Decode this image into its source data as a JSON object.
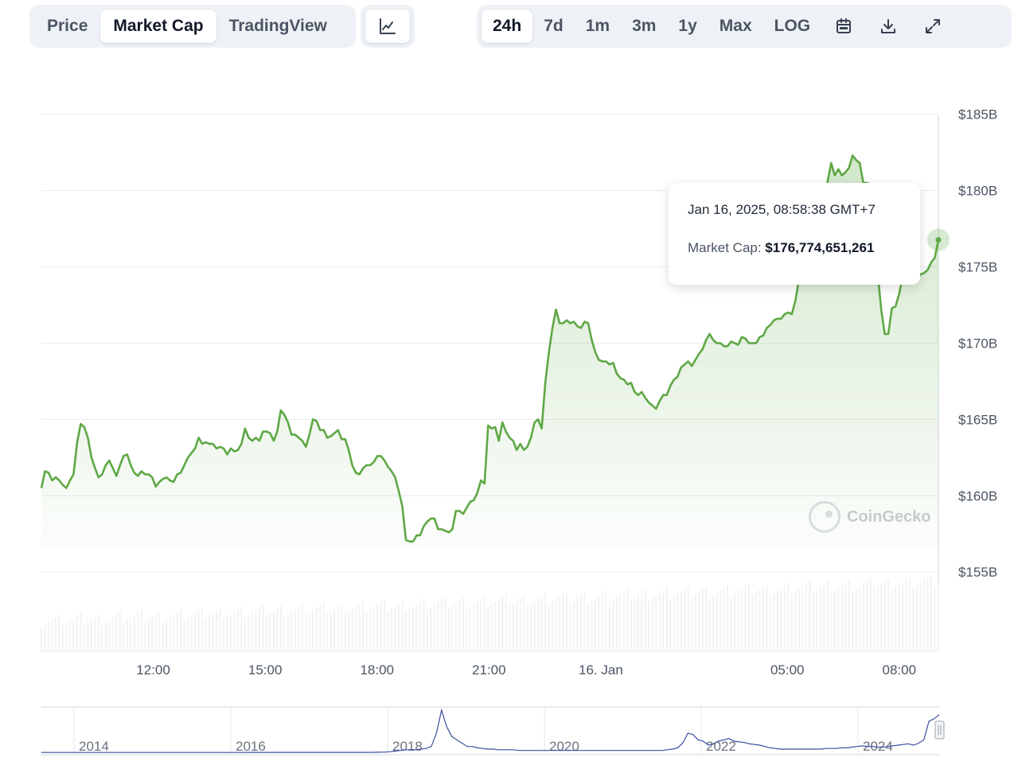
{
  "toolbar": {
    "view_tabs": [
      {
        "label": "Price",
        "active": false
      },
      {
        "label": "Market Cap",
        "active": true
      },
      {
        "label": "TradingView",
        "active": false
      }
    ],
    "chart_type_icon": "line-chart-icon",
    "ranges": [
      {
        "label": "24h",
        "active": true
      },
      {
        "label": "7d",
        "active": false
      },
      {
        "label": "1m",
        "active": false
      },
      {
        "label": "3m",
        "active": false
      },
      {
        "label": "1y",
        "active": false
      },
      {
        "label": "Max",
        "active": false
      },
      {
        "label": "LOG",
        "active": false
      }
    ],
    "icons": [
      "calendar-icon",
      "download-icon",
      "expand-icon"
    ]
  },
  "tooltip": {
    "date": "Jan 16, 2025, 08:58:38 GMT+7",
    "label": "Market Cap:",
    "value": "$176,774,651,261"
  },
  "watermark": "CoinGecko",
  "colors": {
    "line": "#5ea845",
    "area": "#5ea845",
    "navigator_line": "#3b4fa0",
    "grid": "#e8ecf0"
  },
  "chart_data": {
    "type": "area",
    "ylim": [
      152,
      185
    ],
    "yticks": [
      {
        "value": 185,
        "label": "$185B"
      },
      {
        "value": 180,
        "label": "$180B"
      },
      {
        "value": 175,
        "label": "$175B"
      },
      {
        "value": 170,
        "label": "$170B"
      },
      {
        "value": 165,
        "label": "$165B"
      },
      {
        "value": 160,
        "label": "$160B"
      },
      {
        "value": 155,
        "label": "$155B"
      }
    ],
    "x_range_hours": [
      9,
      33.05
    ],
    "xticks": [
      {
        "t": 12,
        "label": "12:00"
      },
      {
        "t": 15,
        "label": "15:00"
      },
      {
        "t": 18,
        "label": "18:00"
      },
      {
        "t": 21,
        "label": "21:00"
      },
      {
        "t": 24,
        "label": "16. Jan"
      },
      {
        "t": 29,
        "label": "05:00"
      },
      {
        "t": 32,
        "label": "08:00"
      }
    ],
    "series": [
      {
        "points": [
          [
            9.0,
            160.5
          ],
          [
            9.1,
            161.6
          ],
          [
            9.2,
            161.5
          ],
          [
            9.3,
            161.0
          ],
          [
            9.4,
            161.2
          ],
          [
            9.5,
            161.0
          ],
          [
            9.6,
            160.7
          ],
          [
            9.7,
            160.5
          ],
          [
            9.8,
            161.0
          ],
          [
            9.9,
            161.4
          ],
          [
            10.0,
            163.5
          ],
          [
            10.1,
            164.7
          ],
          [
            10.2,
            164.5
          ],
          [
            10.3,
            163.8
          ],
          [
            10.4,
            162.5
          ],
          [
            10.5,
            161.8
          ],
          [
            10.6,
            161.2
          ],
          [
            10.7,
            161.4
          ],
          [
            10.8,
            162.0
          ],
          [
            10.9,
            162.3
          ],
          [
            11.0,
            161.8
          ],
          [
            11.1,
            161.3
          ],
          [
            11.2,
            162.0
          ],
          [
            11.3,
            162.6
          ],
          [
            11.4,
            162.7
          ],
          [
            11.5,
            162.0
          ],
          [
            11.6,
            161.5
          ],
          [
            11.7,
            161.3
          ],
          [
            11.8,
            161.6
          ],
          [
            11.9,
            161.4
          ],
          [
            12.0,
            161.4
          ],
          [
            12.1,
            161.2
          ],
          [
            12.2,
            160.6
          ],
          [
            12.3,
            160.9
          ],
          [
            12.4,
            161.1
          ],
          [
            12.5,
            161.2
          ],
          [
            12.6,
            161.0
          ],
          [
            12.7,
            160.9
          ],
          [
            12.8,
            161.4
          ],
          [
            12.9,
            161.5
          ],
          [
            13.0,
            162.0
          ],
          [
            13.1,
            162.5
          ],
          [
            13.2,
            162.8
          ],
          [
            13.3,
            163.1
          ],
          [
            13.4,
            163.8
          ],
          [
            13.5,
            163.4
          ],
          [
            13.6,
            163.5
          ],
          [
            13.7,
            163.4
          ],
          [
            13.8,
            163.4
          ],
          [
            13.9,
            163.1
          ],
          [
            14.0,
            163.2
          ],
          [
            14.1,
            163.1
          ],
          [
            14.2,
            162.7
          ],
          [
            14.3,
            163.1
          ],
          [
            14.4,
            162.9
          ],
          [
            14.5,
            163.0
          ],
          [
            14.6,
            163.4
          ],
          [
            14.7,
            164.4
          ],
          [
            14.8,
            163.8
          ],
          [
            14.9,
            163.6
          ],
          [
            15.0,
            163.8
          ],
          [
            15.1,
            163.6
          ],
          [
            15.2,
            164.2
          ],
          [
            15.3,
            164.2
          ],
          [
            15.4,
            164.1
          ],
          [
            15.5,
            163.6
          ],
          [
            15.6,
            164.2
          ],
          [
            15.7,
            165.6
          ],
          [
            15.8,
            165.3
          ],
          [
            15.9,
            164.8
          ],
          [
            16.0,
            164.0
          ],
          [
            16.1,
            164.0
          ],
          [
            16.2,
            163.8
          ],
          [
            16.3,
            163.6
          ],
          [
            16.4,
            163.2
          ],
          [
            16.5,
            164.0
          ],
          [
            16.6,
            165.0
          ],
          [
            16.7,
            164.9
          ],
          [
            16.8,
            164.3
          ],
          [
            16.9,
            164.3
          ],
          [
            17.0,
            163.8
          ],
          [
            17.1,
            163.9
          ],
          [
            17.2,
            164.1
          ],
          [
            17.3,
            164.3
          ],
          [
            17.4,
            163.7
          ],
          [
            17.5,
            163.7
          ],
          [
            17.6,
            163.0
          ],
          [
            17.7,
            162.0
          ],
          [
            17.8,
            161.5
          ],
          [
            17.9,
            161.4
          ],
          [
            18.0,
            161.8
          ],
          [
            18.1,
            162.0
          ],
          [
            18.2,
            162.0
          ],
          [
            18.3,
            162.2
          ],
          [
            18.4,
            162.6
          ],
          [
            18.5,
            162.6
          ],
          [
            18.6,
            162.3
          ],
          [
            18.7,
            161.9
          ],
          [
            18.8,
            161.6
          ],
          [
            18.9,
            161.2
          ],
          [
            19.0,
            160.3
          ],
          [
            19.1,
            159.3
          ],
          [
            19.2,
            157.1
          ],
          [
            19.3,
            157.0
          ],
          [
            19.4,
            157.0
          ],
          [
            19.5,
            157.4
          ],
          [
            19.6,
            157.4
          ],
          [
            19.7,
            158.0
          ],
          [
            19.8,
            158.3
          ],
          [
            19.9,
            158.5
          ],
          [
            20.0,
            158.5
          ],
          [
            20.1,
            157.8
          ],
          [
            20.2,
            157.8
          ],
          [
            20.3,
            157.7
          ],
          [
            20.4,
            157.6
          ],
          [
            20.5,
            157.8
          ],
          [
            20.6,
            159.0
          ],
          [
            20.7,
            159.0
          ],
          [
            20.8,
            158.8
          ],
          [
            20.9,
            159.2
          ],
          [
            21.0,
            159.6
          ],
          [
            21.1,
            159.7
          ],
          [
            21.2,
            160.2
          ],
          [
            21.3,
            161.0
          ],
          [
            21.4,
            160.8
          ],
          [
            21.5,
            164.6
          ],
          [
            21.6,
            164.4
          ],
          [
            21.7,
            164.5
          ],
          [
            21.8,
            163.6
          ],
          [
            21.9,
            164.8
          ],
          [
            22.0,
            164.2
          ],
          [
            22.1,
            163.8
          ],
          [
            22.2,
            163.6
          ],
          [
            22.3,
            163.0
          ],
          [
            22.4,
            163.4
          ],
          [
            22.5,
            163.0
          ],
          [
            22.6,
            163.2
          ],
          [
            22.7,
            163.8
          ],
          [
            22.8,
            164.8
          ],
          [
            22.9,
            165.0
          ],
          [
            23.0,
            164.4
          ],
          [
            23.1,
            167.4
          ],
          [
            23.2,
            169.4
          ],
          [
            23.3,
            171.0
          ],
          [
            23.4,
            172.2
          ],
          [
            23.5,
            171.3
          ],
          [
            23.6,
            171.3
          ],
          [
            23.7,
            171.5
          ],
          [
            23.8,
            171.3
          ],
          [
            23.9,
            171.4
          ],
          [
            24.0,
            171.1
          ],
          [
            24.1,
            171.0
          ],
          [
            24.2,
            171.4
          ],
          [
            24.3,
            171.3
          ],
          [
            24.4,
            170.2
          ],
          [
            24.5,
            169.4
          ],
          [
            24.6,
            168.9
          ],
          [
            24.7,
            168.8
          ],
          [
            24.8,
            168.8
          ],
          [
            24.9,
            168.6
          ],
          [
            25.0,
            168.7
          ],
          [
            25.1,
            168.0
          ],
          [
            25.2,
            167.7
          ],
          [
            25.3,
            167.6
          ],
          [
            25.4,
            167.3
          ],
          [
            25.5,
            167.4
          ],
          [
            25.6,
            166.8
          ],
          [
            25.7,
            166.6
          ],
          [
            25.8,
            166.8
          ],
          [
            25.9,
            166.4
          ],
          [
            26.0,
            166.1
          ],
          [
            26.1,
            165.9
          ],
          [
            26.2,
            165.7
          ],
          [
            26.3,
            166.2
          ],
          [
            26.4,
            166.6
          ],
          [
            26.5,
            166.6
          ],
          [
            26.6,
            167.2
          ],
          [
            26.7,
            167.6
          ],
          [
            26.8,
            167.8
          ],
          [
            26.9,
            168.4
          ],
          [
            27.0,
            168.6
          ],
          [
            27.1,
            168.8
          ],
          [
            27.2,
            168.5
          ],
          [
            27.3,
            168.9
          ],
          [
            27.4,
            169.3
          ],
          [
            27.5,
            169.6
          ],
          [
            27.6,
            170.2
          ],
          [
            27.7,
            170.6
          ],
          [
            27.8,
            170.2
          ],
          [
            27.9,
            170.0
          ],
          [
            28.0,
            170.0
          ],
          [
            28.1,
            169.8
          ],
          [
            28.2,
            169.8
          ],
          [
            28.3,
            170.1
          ],
          [
            28.4,
            170.0
          ],
          [
            28.5,
            169.9
          ],
          [
            28.6,
            170.4
          ],
          [
            28.7,
            170.3
          ],
          [
            28.8,
            170.0
          ],
          [
            28.9,
            170.0
          ],
          [
            29.0,
            170.0
          ],
          [
            29.1,
            170.4
          ],
          [
            29.2,
            170.5
          ],
          [
            29.3,
            171.0
          ],
          [
            29.4,
            171.2
          ],
          [
            29.5,
            171.5
          ],
          [
            29.6,
            171.6
          ],
          [
            29.7,
            171.6
          ],
          [
            29.8,
            171.9
          ],
          [
            29.9,
            172.0
          ],
          [
            30.0,
            171.9
          ],
          [
            30.1,
            172.8
          ],
          [
            30.2,
            174.2
          ],
          [
            30.3,
            174.8
          ],
          [
            30.4,
            175.4
          ],
          [
            30.5,
            175.8
          ],
          [
            30.6,
            176.0
          ],
          [
            30.7,
            176.4
          ],
          [
            30.8,
            176.8
          ],
          [
            30.9,
            177.5
          ],
          [
            31.0,
            180.6
          ],
          [
            31.1,
            181.8
          ],
          [
            31.2,
            181.0
          ],
          [
            31.3,
            181.4
          ],
          [
            31.4,
            181.0
          ],
          [
            31.5,
            181.2
          ],
          [
            31.6,
            181.5
          ],
          [
            31.7,
            182.3
          ],
          [
            31.8,
            182.0
          ],
          [
            31.9,
            181.8
          ],
          [
            32.0,
            180.5
          ],
          [
            32.1,
            180.5
          ],
          [
            32.2,
            180.4
          ],
          [
            32.3,
            179.5
          ],
          [
            32.4,
            174.6
          ],
          [
            32.5,
            172.2
          ],
          [
            32.6,
            170.6
          ],
          [
            32.7,
            170.6
          ],
          [
            32.8,
            172.3
          ],
          [
            32.9,
            172.4
          ],
          [
            33.0,
            173.2
          ],
          [
            33.1,
            174.4
          ],
          [
            33.2,
            174.3
          ],
          [
            33.3,
            174.5
          ],
          [
            33.4,
            174.2
          ],
          [
            33.5,
            174.3
          ],
          [
            33.6,
            174.5
          ],
          [
            33.7,
            174.6
          ],
          [
            33.8,
            174.8
          ],
          [
            33.9,
            175.3
          ],
          [
            34.0,
            175.6
          ],
          [
            34.1,
            176.77
          ]
        ],
        "x_start": 9,
        "x_end": 33.05
      }
    ],
    "navigator": {
      "xticks": [
        "2014",
        "2016",
        "2018",
        "2020",
        "2022",
        "2024"
      ],
      "values": [
        1,
        1,
        1,
        1,
        1,
        1,
        1,
        1,
        1,
        1,
        1,
        1,
        1,
        1,
        1,
        1,
        1,
        1,
        1,
        1,
        1,
        1,
        1,
        1,
        1,
        1,
        1,
        1,
        1,
        1,
        1,
        1,
        1,
        1,
        1,
        1,
        1,
        1,
        1,
        1,
        1.1,
        1.1,
        1.1,
        1.1,
        1.1,
        1.1,
        1.1,
        1.1,
        1.1,
        1.1,
        1.1,
        1.1,
        1.1,
        1.1,
        1.1,
        1.1,
        1.1,
        1.1,
        1.1,
        1.1,
        1.1,
        1.1,
        1.1,
        1.1,
        1.1,
        1.2,
        1.3,
        1.5,
        2,
        3,
        4,
        5,
        5,
        5,
        6,
        7,
        10,
        30,
        65,
        40,
        25,
        20,
        15,
        10,
        10,
        8,
        7,
        6,
        6,
        5,
        5,
        5,
        5,
        4,
        4,
        4,
        4,
        4,
        4,
        4,
        4,
        4,
        4,
        4,
        4,
        4,
        4,
        4,
        4,
        4,
        4,
        4,
        4,
        4,
        4,
        4,
        4,
        4,
        4,
        4,
        4,
        4,
        5,
        6,
        8,
        15,
        30,
        28,
        20,
        18,
        12,
        14,
        18,
        20,
        22,
        18,
        17,
        16,
        14,
        13,
        12,
        10,
        8,
        7,
        6,
        6,
        6,
        6,
        6,
        6,
        6,
        6,
        6,
        7,
        7,
        7,
        8,
        8,
        9,
        10,
        11,
        10,
        10,
        9,
        9,
        10,
        11,
        12,
        13,
        14,
        12,
        15,
        20,
        48,
        52,
        58
      ]
    }
  }
}
